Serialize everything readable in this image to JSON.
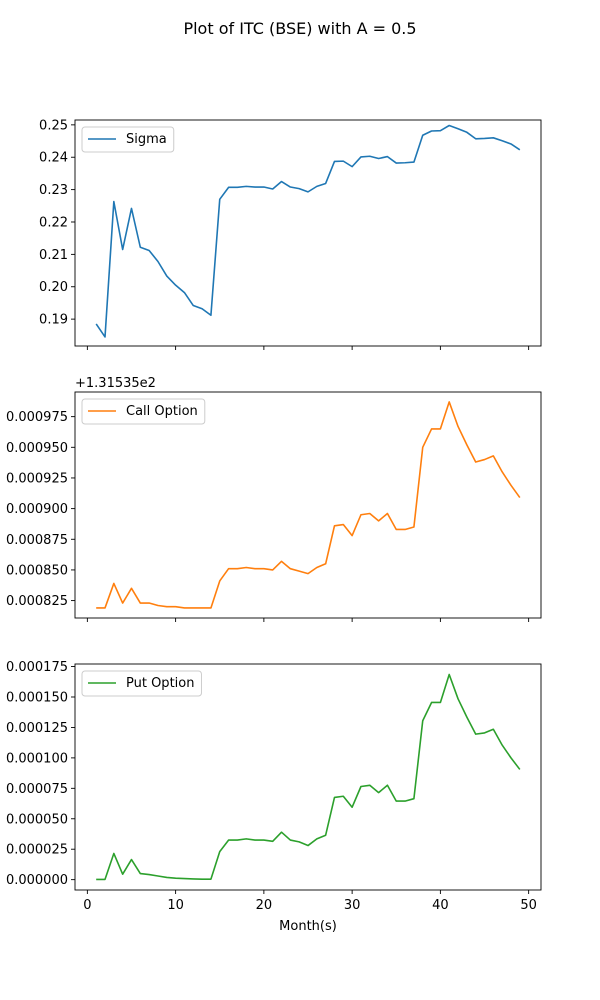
{
  "figure": {
    "title": "Plot of ITC (BSE) with A = 0.5"
  },
  "chart_data": [
    {
      "type": "line",
      "series": [
        {
          "name": "Sigma",
          "color": "#1f77b4",
          "x": [
            1,
            2,
            3,
            4,
            5,
            6,
            7,
            8,
            9,
            10,
            11,
            12,
            13,
            14,
            15,
            16,
            17,
            18,
            19,
            20,
            21,
            22,
            23,
            24,
            25,
            26,
            27,
            28,
            29,
            30,
            31,
            32,
            33,
            34,
            35,
            36,
            37,
            38,
            39,
            40,
            41,
            42,
            43,
            44,
            45,
            46,
            47,
            48,
            49
          ],
          "values": [
            0.1885,
            0.1845,
            0.2263,
            0.2115,
            0.2242,
            0.2122,
            0.2112,
            0.2078,
            0.2033,
            0.2005,
            0.1982,
            0.1942,
            0.1932,
            0.1912,
            0.227,
            0.2307,
            0.2307,
            0.231,
            0.2308,
            0.2308,
            0.2302,
            0.2325,
            0.2308,
            0.2303,
            0.2293,
            0.231,
            0.2319,
            0.2387,
            0.2388,
            0.2371,
            0.2401,
            0.2403,
            0.2396,
            0.2402,
            0.2382,
            0.2383,
            0.2385,
            0.2468,
            0.2481,
            0.2482,
            0.2498,
            0.2488,
            0.2477,
            0.2457,
            0.2458,
            0.246,
            0.2451,
            0.2441,
            0.2423
          ]
        }
      ],
      "xlim": [
        -1.4,
        51.4
      ],
      "ylim": [
        0.1817,
        0.2515
      ],
      "xticks": [
        0,
        10,
        20,
        30,
        40,
        50
      ],
      "yticks": [
        0.19,
        0.2,
        0.21,
        0.22,
        0.23,
        0.24,
        0.25
      ],
      "ytick_labels": [
        "0.19",
        "0.20",
        "0.21",
        "0.22",
        "0.23",
        "0.24",
        "0.25"
      ],
      "xtick_labels_visible": false,
      "offset_text": "",
      "legend": "top-left",
      "grid": false
    },
    {
      "type": "line",
      "series": [
        {
          "name": "Call Option",
          "color": "#ff7f0e",
          "x": [
            1,
            2,
            3,
            4,
            5,
            6,
            7,
            8,
            9,
            10,
            11,
            12,
            13,
            14,
            15,
            16,
            17,
            18,
            19,
            20,
            21,
            22,
            23,
            24,
            25,
            26,
            27,
            28,
            29,
            30,
            31,
            32,
            33,
            34,
            35,
            36,
            37,
            38,
            39,
            40,
            41,
            42,
            43,
            44,
            45,
            46,
            47,
            48,
            49
          ],
          "values": [
            0.000819,
            0.000819,
            0.000839,
            0.000823,
            0.000835,
            0.000823,
            0.000823,
            0.000821,
            0.00082,
            0.00082,
            0.000819,
            0.000819,
            0.000819,
            0.000819,
            0.000841,
            0.000851,
            0.000851,
            0.000852,
            0.000851,
            0.000851,
            0.00085,
            0.000857,
            0.000851,
            0.000849,
            0.000847,
            0.000852,
            0.000855,
            0.000886,
            0.000887,
            0.000878,
            0.000895,
            0.000896,
            0.00089,
            0.000896,
            0.000883,
            0.000883,
            0.000885,
            0.00095,
            0.000965,
            0.000965,
            0.000987,
            0.000967,
            0.000952,
            0.000938,
            0.00094,
            0.000943,
            0.00093,
            0.000919,
            0.000909
          ]
        }
      ],
      "xlim": [
        -1.4,
        51.4
      ],
      "ylim": [
        0.0008108,
        0.0009951
      ],
      "xticks": [
        0,
        10,
        20,
        30,
        40,
        50
      ],
      "yticks": [
        0.000825,
        0.00085,
        0.000875,
        0.0009,
        0.000925,
        0.00095,
        0.000975
      ],
      "ytick_labels": [
        "0.000825",
        "0.000850",
        "0.000875",
        "0.000900",
        "0.000925",
        "0.000950",
        "0.000975"
      ],
      "xtick_labels_visible": false,
      "offset_text": "+1.31535e2",
      "legend": "top-left",
      "grid": false
    },
    {
      "type": "line",
      "series": [
        {
          "name": "Put Option",
          "color": "#2ca02c",
          "x": [
            1,
            2,
            3,
            4,
            5,
            6,
            7,
            8,
            9,
            10,
            11,
            12,
            13,
            14,
            15,
            16,
            17,
            18,
            19,
            20,
            21,
            22,
            23,
            24,
            25,
            26,
            27,
            28,
            29,
            30,
            31,
            32,
            33,
            34,
            35,
            36,
            37,
            38,
            39,
            40,
            41,
            42,
            43,
            44,
            45,
            46,
            47,
            48,
            49
          ],
          "values": [
            2e-07,
            2e-07,
            2.15e-05,
            4.5e-06,
            1.65e-05,
            5e-06,
            4.2e-06,
            3e-06,
            1.8e-06,
            1.2e-06,
            9e-07,
            6e-07,
            4e-07,
            4e-07,
            2.3e-05,
            3.25e-05,
            3.25e-05,
            3.35e-05,
            3.25e-05,
            3.25e-05,
            3.15e-05,
            3.9e-05,
            3.25e-05,
            3.1e-05,
            2.8e-05,
            3.35e-05,
            3.65e-05,
            6.75e-05,
            6.85e-05,
            5.95e-05,
            7.65e-05,
            7.75e-05,
            7.15e-05,
            7.75e-05,
            6.45e-05,
            6.45e-05,
            6.65e-05,
            0.0001305,
            0.0001455,
            0.0001455,
            0.0001685,
            0.0001485,
            0.0001335,
            0.0001195,
            0.0001205,
            0.0001235,
            0.0001105,
            0.0001,
            9.05e-05
          ]
        }
      ],
      "xlim": [
        -1.4,
        51.4
      ],
      "ylim": [
        -8.5e-06,
        0.0001771
      ],
      "xticks": [
        0,
        10,
        20,
        30,
        40,
        50
      ],
      "yticks": [
        0,
        2.5e-05,
        5e-05,
        7.5e-05,
        0.0001,
        0.000125,
        0.00015,
        0.000175
      ],
      "ytick_labels": [
        "0.000000",
        "0.000025",
        "0.000050",
        "0.000075",
        "0.000100",
        "0.000125",
        "0.000150",
        "0.000175"
      ],
      "xtick_labels_visible": true,
      "xtick_labels": [
        "0",
        "10",
        "20",
        "30",
        "40",
        "50"
      ],
      "xlabel": "Month(s)",
      "offset_text": "",
      "legend": "top-left",
      "grid": false
    }
  ]
}
